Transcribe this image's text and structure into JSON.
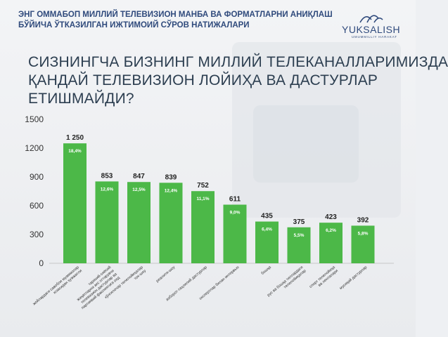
{
  "header": {
    "survey_title_line1": "ЭНГ ОММАБОП МИЛЛИЙ ТЕЛЕВИЗИОН МАНБА ВА ФОРМАТЛАРНИ АНИҚЛАШ",
    "survey_title_line2": "БЎЙИЧА ЎТКАЗИЛГАН ИЖТИМОИЙ СЎРОВ НАТИЖАЛАРИ",
    "logo_text": "YUKSALISH",
    "logo_subtext": "UMUMMILLIY HARAKAT"
  },
  "chart_data": {
    "type": "bar",
    "title": "СИЗНИНГЧА БИЗНИНГ МИЛЛИЙ ТЕЛЕКАНАЛЛАРИМИЗДА ҚАНДАЙ ТЕЛЕВИЗИОН ЛОЙИҲА ВА ДАСТУРЛАР ЕТИШМАЙДИ?",
    "title_lines": [
      "СИЗНИНГЧА БИЗНИНГ МИЛЛИЙ ТЕЛЕКАНАЛЛАРИМИЗДА",
      "ҚАНДАЙ ТЕЛЕВИЗИОН ЛОЙИҲА ВА ДАСТУРЛАР",
      "ЕТИШМАЙДИ?"
    ],
    "categories": [
      [
        "жойлардаги савобли муаммолар",
        "юзасидан ҳужжатли"
      ],
      [
        "тарихий-сиёсий",
        "жиҳатларни акс эттирувчи",
        "телевизион дастурлар ва",
        "партиявий фаолиятига оид"
      ],
      [
        "кўнгилочар телелойиҳалар",
        "ток-шоу"
      ],
      [
        "реалити-шоу"
      ],
      [
        "ахборот-таҳлилий дастурлар"
      ],
      [
        "экспертлар билан интервью"
      ],
      [
        "бошқа"
      ],
      [
        "рус ва бошқа тиллардаги",
        "телелойиҳалар"
      ],
      [
        "спорт телелойиҳа",
        "ва ленталари"
      ],
      [
        "мусиқий дастурлар"
      ]
    ],
    "values": [
      1250,
      853,
      847,
      839,
      752,
      611,
      435,
      375,
      423,
      392
    ],
    "value_labels": [
      "1 250",
      "853",
      "847",
      "839",
      "752",
      "611",
      "435",
      "375",
      "423",
      "392"
    ],
    "percent_labels": [
      "18,4%",
      "12,6%",
      "12,5%",
      "12,4%",
      "11,1%",
      "9,0%",
      "6,4%",
      "5,5%",
      "6,2%",
      "5,8%"
    ],
    "y_ticks": [
      "1500",
      "1200",
      "900",
      "600",
      "300",
      "0"
    ],
    "ylim": [
      0,
      1500
    ],
    "bar_color": "#4cb848",
    "grid": false
  }
}
